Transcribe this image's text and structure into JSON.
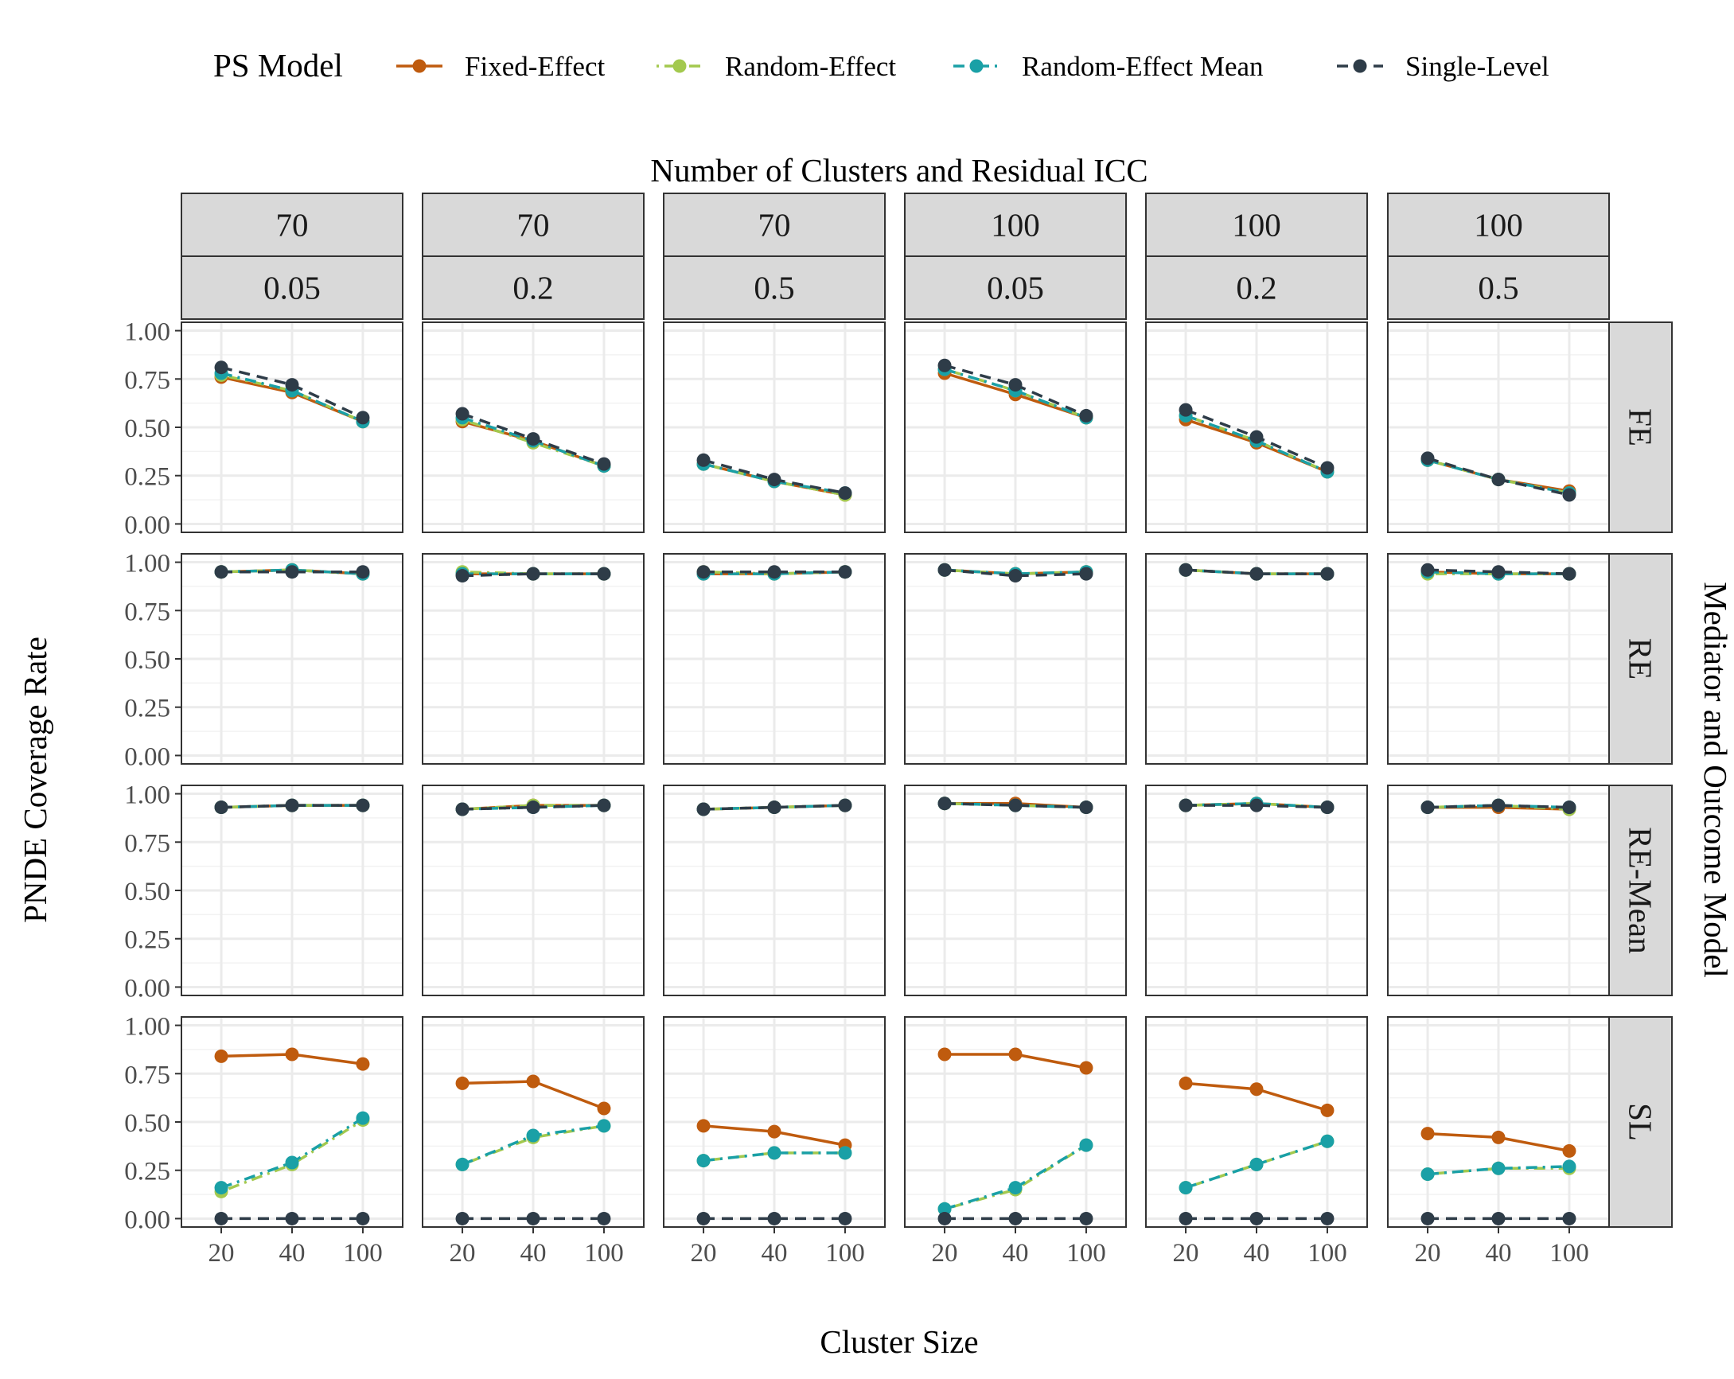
{
  "legend": {
    "title": "PS Model",
    "entries": [
      {
        "label": "Fixed-Effect",
        "color": "#BF5B0E",
        "dash": "solid"
      },
      {
        "label": "Random-Effect",
        "color": "#A3C94E",
        "dash": "dotdash"
      },
      {
        "label": "Random-Effect Mean",
        "color": "#1AA0A6",
        "dash": "dashdot"
      },
      {
        "label": "Single-Level",
        "color": "#2E3C48",
        "dash": "dashed"
      }
    ]
  },
  "chart_data": {
    "type": "line",
    "top_strip_title": "Number of Clusters and Residual ICC",
    "xlabel": "Cluster Size",
    "ylabel": "PNDE Coverage Rate",
    "right_strip_title": "Mediator and Outcome Model",
    "x_categories": [
      "20",
      "40",
      "100"
    ],
    "y_ticks": [
      "0.00",
      "0.25",
      "0.50",
      "0.75",
      "1.00"
    ],
    "ylim": [
      0,
      1
    ],
    "grid": true,
    "legend_position": "top",
    "columns": [
      {
        "clusters": "70",
        "icc": "0.05"
      },
      {
        "clusters": "70",
        "icc": "0.2"
      },
      {
        "clusters": "70",
        "icc": "0.5"
      },
      {
        "clusters": "100",
        "icc": "0.05"
      },
      {
        "clusters": "100",
        "icc": "0.2"
      },
      {
        "clusters": "100",
        "icc": "0.5"
      }
    ],
    "rows": [
      "FE",
      "RE",
      "RE-Mean",
      "SL"
    ],
    "series_names": [
      "Fixed-Effect",
      "Random-Effect",
      "Random-Effect Mean",
      "Single-Level"
    ],
    "values": [
      [
        [
          [
            0.76,
            0.68,
            0.53
          ],
          [
            0.77,
            0.69,
            0.53
          ],
          [
            0.78,
            0.69,
            0.53
          ],
          [
            0.81,
            0.72,
            0.55
          ]
        ],
        [
          [
            0.53,
            0.43,
            0.3
          ],
          [
            0.54,
            0.42,
            0.3
          ],
          [
            0.55,
            0.43,
            0.3
          ],
          [
            0.57,
            0.44,
            0.31
          ]
        ],
        [
          [
            0.31,
            0.22,
            0.15
          ],
          [
            0.31,
            0.22,
            0.15
          ],
          [
            0.31,
            0.22,
            0.16
          ],
          [
            0.33,
            0.23,
            0.16
          ]
        ],
        [
          [
            0.78,
            0.67,
            0.55
          ],
          [
            0.8,
            0.69,
            0.55
          ],
          [
            0.8,
            0.69,
            0.55
          ],
          [
            0.82,
            0.72,
            0.56
          ]
        ],
        [
          [
            0.54,
            0.42,
            0.27
          ],
          [
            0.56,
            0.43,
            0.27
          ],
          [
            0.56,
            0.43,
            0.27
          ],
          [
            0.59,
            0.45,
            0.29
          ]
        ],
        [
          [
            0.33,
            0.23,
            0.17
          ],
          [
            0.33,
            0.23,
            0.16
          ],
          [
            0.33,
            0.23,
            0.16
          ],
          [
            0.34,
            0.23,
            0.15
          ]
        ]
      ],
      [
        [
          [
            0.95,
            0.96,
            0.94
          ],
          [
            0.95,
            0.96,
            0.94
          ],
          [
            0.95,
            0.96,
            0.94
          ],
          [
            0.95,
            0.95,
            0.95
          ]
        ],
        [
          [
            0.94,
            0.94,
            0.94
          ],
          [
            0.95,
            0.94,
            0.94
          ],
          [
            0.94,
            0.94,
            0.94
          ],
          [
            0.93,
            0.94,
            0.94
          ]
        ],
        [
          [
            0.94,
            0.94,
            0.95
          ],
          [
            0.95,
            0.94,
            0.95
          ],
          [
            0.94,
            0.94,
            0.95
          ],
          [
            0.95,
            0.95,
            0.95
          ]
        ],
        [
          [
            0.96,
            0.94,
            0.95
          ],
          [
            0.96,
            0.94,
            0.95
          ],
          [
            0.96,
            0.94,
            0.95
          ],
          [
            0.96,
            0.93,
            0.94
          ]
        ],
        [
          [
            0.96,
            0.94,
            0.94
          ],
          [
            0.96,
            0.94,
            0.94
          ],
          [
            0.96,
            0.94,
            0.94
          ],
          [
            0.96,
            0.94,
            0.94
          ]
        ],
        [
          [
            0.95,
            0.94,
            0.94
          ],
          [
            0.94,
            0.94,
            0.94
          ],
          [
            0.95,
            0.94,
            0.94
          ],
          [
            0.96,
            0.95,
            0.94
          ]
        ]
      ],
      [
        [
          [
            0.93,
            0.94,
            0.94
          ],
          [
            0.93,
            0.94,
            0.94
          ],
          [
            0.93,
            0.94,
            0.94
          ],
          [
            0.93,
            0.94,
            0.94
          ]
        ],
        [
          [
            0.92,
            0.94,
            0.94
          ],
          [
            0.92,
            0.94,
            0.94
          ],
          [
            0.92,
            0.93,
            0.94
          ],
          [
            0.92,
            0.93,
            0.94
          ]
        ],
        [
          [
            0.92,
            0.93,
            0.94
          ],
          [
            0.92,
            0.93,
            0.94
          ],
          [
            0.92,
            0.93,
            0.94
          ],
          [
            0.92,
            0.93,
            0.94
          ]
        ],
        [
          [
            0.95,
            0.95,
            0.93
          ],
          [
            0.95,
            0.94,
            0.93
          ],
          [
            0.95,
            0.94,
            0.93
          ],
          [
            0.95,
            0.94,
            0.93
          ]
        ],
        [
          [
            0.94,
            0.95,
            0.93
          ],
          [
            0.94,
            0.95,
            0.93
          ],
          [
            0.94,
            0.95,
            0.93
          ],
          [
            0.94,
            0.94,
            0.93
          ]
        ],
        [
          [
            0.93,
            0.93,
            0.92
          ],
          [
            0.93,
            0.94,
            0.92
          ],
          [
            0.93,
            0.94,
            0.93
          ],
          [
            0.93,
            0.94,
            0.93
          ]
        ]
      ],
      [
        [
          [
            0.84,
            0.85,
            0.8
          ],
          [
            0.14,
            0.28,
            0.51
          ],
          [
            0.16,
            0.29,
            0.52
          ],
          [
            0.0,
            0.0,
            0.0
          ]
        ],
        [
          [
            0.7,
            0.71,
            0.57
          ],
          [
            0.28,
            0.42,
            0.48
          ],
          [
            0.28,
            0.43,
            0.48
          ],
          [
            0.0,
            0.0,
            0.0
          ]
        ],
        [
          [
            0.48,
            0.45,
            0.38
          ],
          [
            0.3,
            0.34,
            0.34
          ],
          [
            0.3,
            0.34,
            0.34
          ],
          [
            0.0,
            0.0,
            0.0
          ]
        ],
        [
          [
            0.85,
            0.85,
            0.78
          ],
          [
            0.05,
            0.15,
            0.38
          ],
          [
            0.05,
            0.16,
            0.38
          ],
          [
            0.0,
            0.0,
            0.0
          ]
        ],
        [
          [
            0.7,
            0.67,
            0.56
          ],
          [
            0.16,
            0.28,
            0.4
          ],
          [
            0.16,
            0.28,
            0.4
          ],
          [
            0.0,
            0.0,
            0.0
          ]
        ],
        [
          [
            0.44,
            0.42,
            0.35
          ],
          [
            0.23,
            0.26,
            0.26
          ],
          [
            0.23,
            0.26,
            0.27
          ],
          [
            0.0,
            0.0,
            0.0
          ]
        ]
      ]
    ]
  }
}
